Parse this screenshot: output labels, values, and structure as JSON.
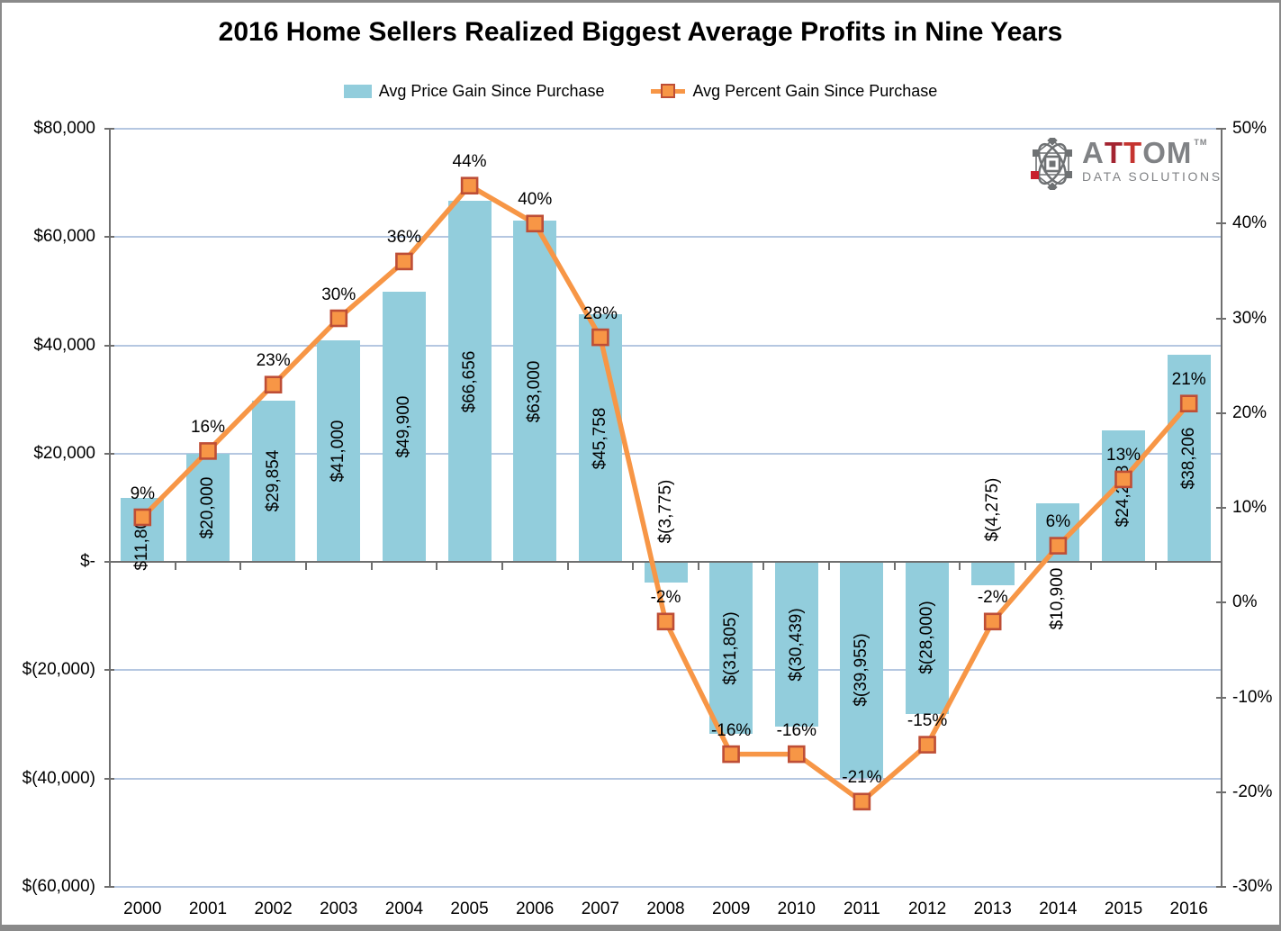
{
  "title": "2016 Home Sellers Realized Biggest Average Profits in Nine Years",
  "legend": {
    "series1_label": "Avg Price Gain Since Purchase",
    "series2_label": "Avg Percent Gain Since Purchase"
  },
  "logo": {
    "brand_a": "A",
    "brand_t1": "T",
    "brand_t2": "T",
    "brand_om": "OM",
    "tm": "TM",
    "sub_brand": "DATA SOLUTIONS"
  },
  "colors": {
    "bar_fill": "#92CDDC",
    "line": "#F79646",
    "marker_fill": "#F79646",
    "marker_border": "#BE4E36",
    "grid": "#B5C7E1",
    "axis": "#6F6F6F",
    "text": "#000000",
    "frame_border": "#8A8A8A",
    "logo_gray": "#808285",
    "logo_icon_gray": "#6E7173",
    "logo_red_dark": "#A32431",
    "logo_red": "#C53430"
  },
  "chart_data": {
    "type": "bar",
    "subtype": "combo-bar-line",
    "title": "2016 Home Sellers Realized Biggest Average Profits in Nine Years",
    "categories": [
      "2000",
      "2001",
      "2002",
      "2003",
      "2004",
      "2005",
      "2006",
      "2007",
      "2008",
      "2009",
      "2010",
      "2011",
      "2012",
      "2013",
      "2014",
      "2015",
      "2016"
    ],
    "series": [
      {
        "name": "Avg Price Gain Since Purchase",
        "type": "bar",
        "axis": "left",
        "values": [
          11800,
          20000,
          29854,
          41000,
          49900,
          66656,
          63000,
          45758,
          -3775,
          -31805,
          -30439,
          -39955,
          -28000,
          -4275,
          10900,
          24288,
          38206
        ],
        "labels": [
          "$11,800",
          "$20,000",
          "$29,854",
          "$41,000",
          "$49,900",
          "$66,656",
          "$63,000",
          "$45,758",
          "$(3,775)",
          "$(31,805)",
          "$(30,439)",
          "$(39,955)",
          "$(28,000)",
          "$(4,275)",
          "$10,900",
          "$24,288",
          "$38,206"
        ]
      },
      {
        "name": "Avg Percent Gain Since Purchase",
        "type": "line",
        "axis": "right",
        "values": [
          9,
          16,
          23,
          30,
          36,
          44,
          40,
          28,
          -2,
          -16,
          -16,
          -21,
          -15,
          -2,
          6,
          13,
          21
        ],
        "labels": [
          "9%",
          "16%",
          "23%",
          "30%",
          "36%",
          "44%",
          "40%",
          "28%",
          "-2%",
          "-16%",
          "-16%",
          "-21%",
          "-15%",
          "-2%",
          "6%",
          "13%",
          "21%"
        ]
      }
    ],
    "left_axis": {
      "tick_labels": [
        "$80,000",
        "$60,000",
        "$40,000",
        "$20,000",
        "$-",
        "$(20,000)",
        "$(40,000)",
        "$(60,000)"
      ],
      "tick_values": [
        80000,
        60000,
        40000,
        20000,
        0,
        -20000,
        -40000,
        -60000
      ],
      "range": [
        -60000,
        80000
      ]
    },
    "right_axis": {
      "tick_labels": [
        "50%",
        "40%",
        "30%",
        "20%",
        "10%",
        "0%",
        "-10%",
        "-20%",
        "-30%"
      ],
      "tick_values": [
        50,
        40,
        30,
        20,
        10,
        0,
        -10,
        -20,
        -30
      ],
      "range": [
        -30,
        50
      ]
    },
    "grid": true,
    "legend_position": "top-center"
  }
}
